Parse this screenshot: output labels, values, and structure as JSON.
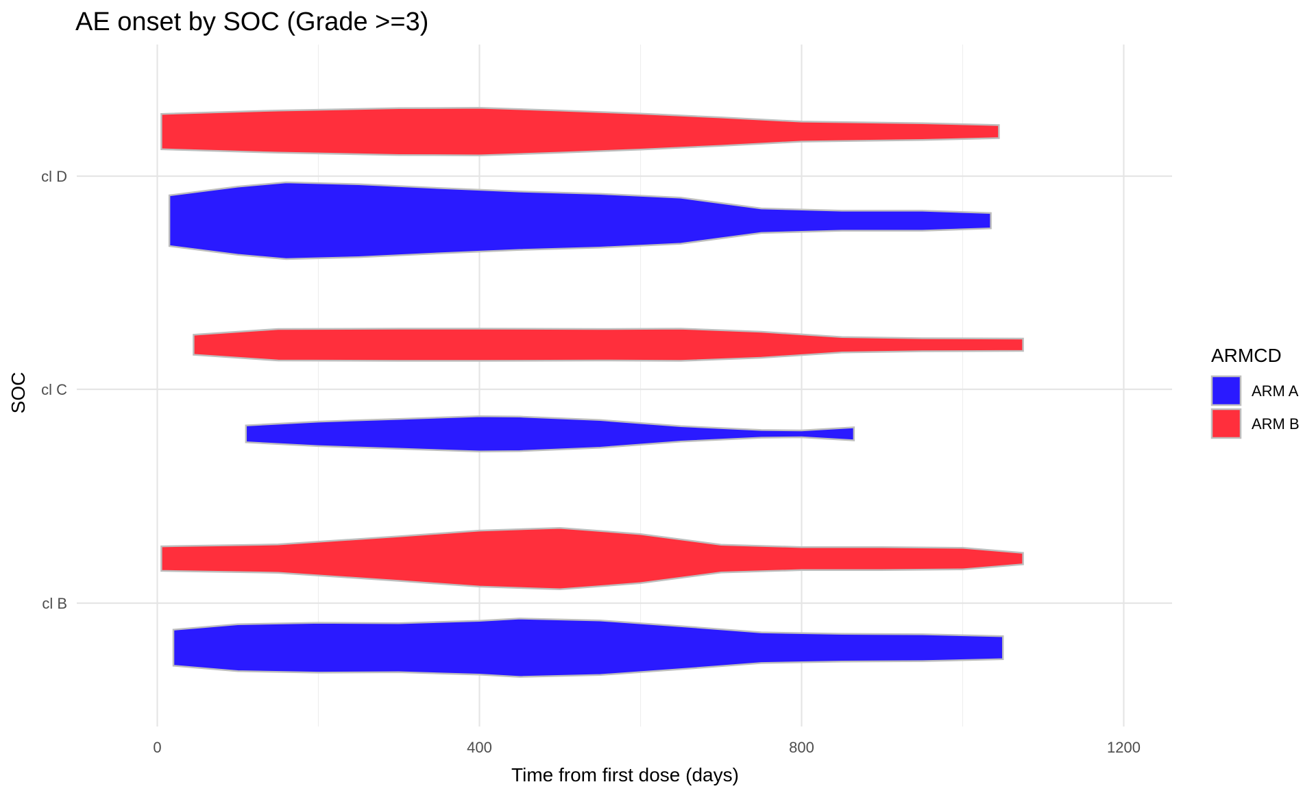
{
  "chart_data": {
    "type": "violin",
    "title": "AE onset by SOC (Grade >=3)",
    "xlabel": "Time from first dose (days)",
    "ylabel": "SOC",
    "xlim": [
      -100,
      1260
    ],
    "x_ticks": [
      0,
      400,
      800,
      1200
    ],
    "x_tick_labels": [
      "0",
      "400",
      "800",
      "1200"
    ],
    "categories": [
      "cl B",
      "cl C",
      "cl D"
    ],
    "grid": true,
    "orientation": "horizontal",
    "legend": {
      "title": "ARMCD",
      "position": "right",
      "items": [
        {
          "label": "ARM A",
          "color": "#2a1aff"
        },
        {
          "label": "ARM B",
          "color": "#ff2f3c"
        }
      ]
    },
    "outline_color": "#bebebe",
    "series": [
      {
        "name": "ARM A",
        "color": "#2a1aff",
        "violins": [
          {
            "category": "cl B",
            "range": [
              20,
              1050
            ],
            "width_profile": [
              [
                20,
                0.47
              ],
              [
                100,
                0.61
              ],
              [
                200,
                0.65
              ],
              [
                300,
                0.64
              ],
              [
                400,
                0.7
              ],
              [
                450,
                0.76
              ],
              [
                550,
                0.71
              ],
              [
                650,
                0.56
              ],
              [
                750,
                0.4
              ],
              [
                850,
                0.36
              ],
              [
                950,
                0.35
              ],
              [
                1050,
                0.3
              ]
            ]
          },
          {
            "category": "cl C",
            "range": [
              110,
              865
            ],
            "width_profile": [
              [
                110,
                0.22
              ],
              [
                200,
                0.32
              ],
              [
                300,
                0.39
              ],
              [
                400,
                0.46
              ],
              [
                450,
                0.45
              ],
              [
                550,
                0.36
              ],
              [
                650,
                0.2
              ],
              [
                750,
                0.1
              ],
              [
                800,
                0.09
              ],
              [
                865,
                0.17
              ]
            ]
          },
          {
            "category": "cl D",
            "range": [
              15,
              1035
            ],
            "width_profile": [
              [
                15,
                0.66
              ],
              [
                100,
                0.89
              ],
              [
                160,
                1.0
              ],
              [
                250,
                0.95
              ],
              [
                350,
                0.85
              ],
              [
                450,
                0.76
              ],
              [
                550,
                0.7
              ],
              [
                650,
                0.6
              ],
              [
                750,
                0.32
              ],
              [
                850,
                0.26
              ],
              [
                950,
                0.26
              ],
              [
                1035,
                0.2
              ]
            ]
          }
        ]
      },
      {
        "name": "ARM B",
        "color": "#ff2f3c",
        "violins": [
          {
            "category": "cl B",
            "range": [
              5,
              1075
            ],
            "width_profile": [
              [
                5,
                0.32
              ],
              [
                150,
                0.37
              ],
              [
                300,
                0.58
              ],
              [
                400,
                0.73
              ],
              [
                500,
                0.8
              ],
              [
                600,
                0.64
              ],
              [
                700,
                0.36
              ],
              [
                800,
                0.3
              ],
              [
                900,
                0.3
              ],
              [
                1000,
                0.28
              ],
              [
                1075,
                0.15
              ]
            ]
          },
          {
            "category": "cl C",
            "range": [
              45,
              1075
            ],
            "width_profile": [
              [
                45,
                0.26
              ],
              [
                150,
                0.41
              ],
              [
                300,
                0.42
              ],
              [
                400,
                0.42
              ],
              [
                550,
                0.41
              ],
              [
                650,
                0.42
              ],
              [
                750,
                0.34
              ],
              [
                850,
                0.2
              ],
              [
                950,
                0.17
              ],
              [
                1075,
                0.16
              ]
            ]
          },
          {
            "category": "cl D",
            "range": [
              5,
              1045
            ],
            "width_profile": [
              [
                5,
                0.46
              ],
              [
                150,
                0.55
              ],
              [
                300,
                0.61
              ],
              [
                400,
                0.62
              ],
              [
                500,
                0.55
              ],
              [
                600,
                0.47
              ],
              [
                700,
                0.37
              ],
              [
                800,
                0.26
              ],
              [
                950,
                0.22
              ],
              [
                1045,
                0.17
              ]
            ]
          }
        ]
      }
    ]
  }
}
